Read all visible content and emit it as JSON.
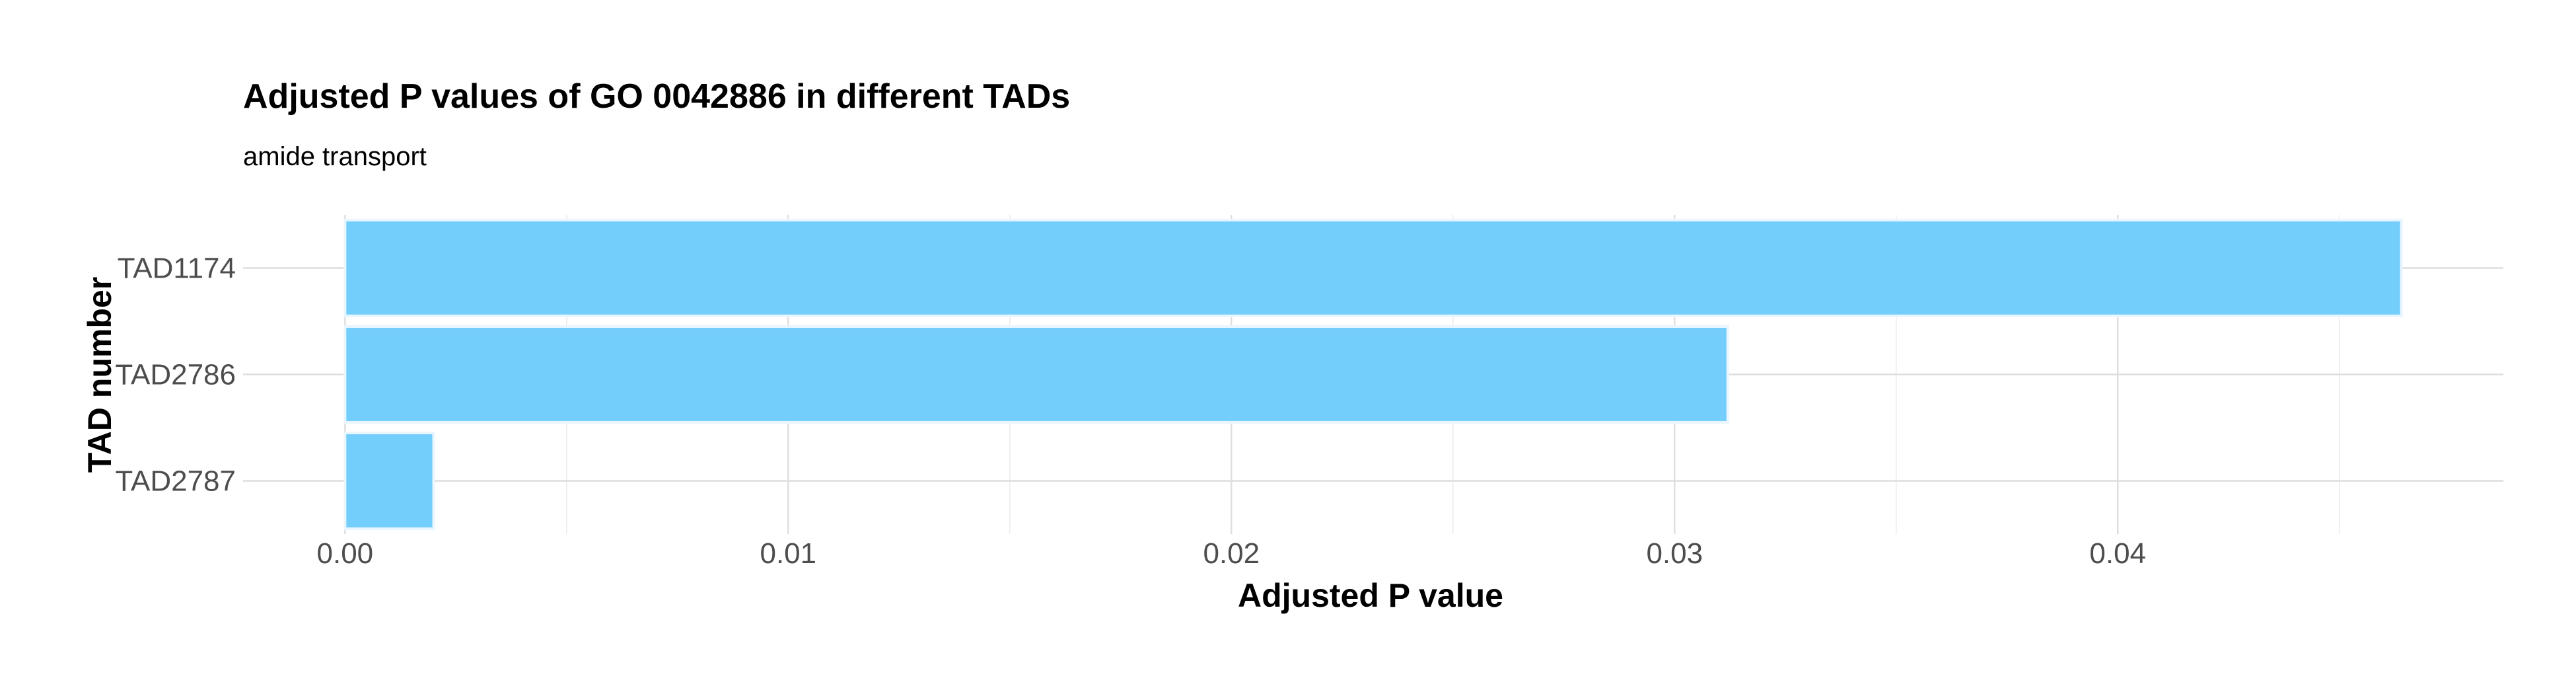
{
  "chart_data": {
    "type": "bar",
    "orientation": "horizontal",
    "title": "Adjusted P values of GO 0042886 in different TADs",
    "subtitle": "amide transport",
    "xlabel": "Adjusted P value",
    "ylabel": "TAD number",
    "categories": [
      "TAD1174",
      "TAD2786",
      "TAD2787"
    ],
    "values": [
      0.0464,
      0.0312,
      0.002
    ],
    "xlim": [
      -0.0023,
      0.0487
    ],
    "x_ticks": [
      0.0,
      0.01,
      0.02,
      0.03,
      0.04
    ],
    "x_tick_labels": [
      "0.00",
      "0.01",
      "0.02",
      "0.03",
      "0.04"
    ],
    "x_minor_ticks": [
      0.005,
      0.015,
      0.025,
      0.035,
      0.045
    ],
    "grid": true,
    "legend": "none",
    "colors": {
      "bar_fill": "#74cefb",
      "bar_stroke": "#e9f6ff"
    }
  }
}
